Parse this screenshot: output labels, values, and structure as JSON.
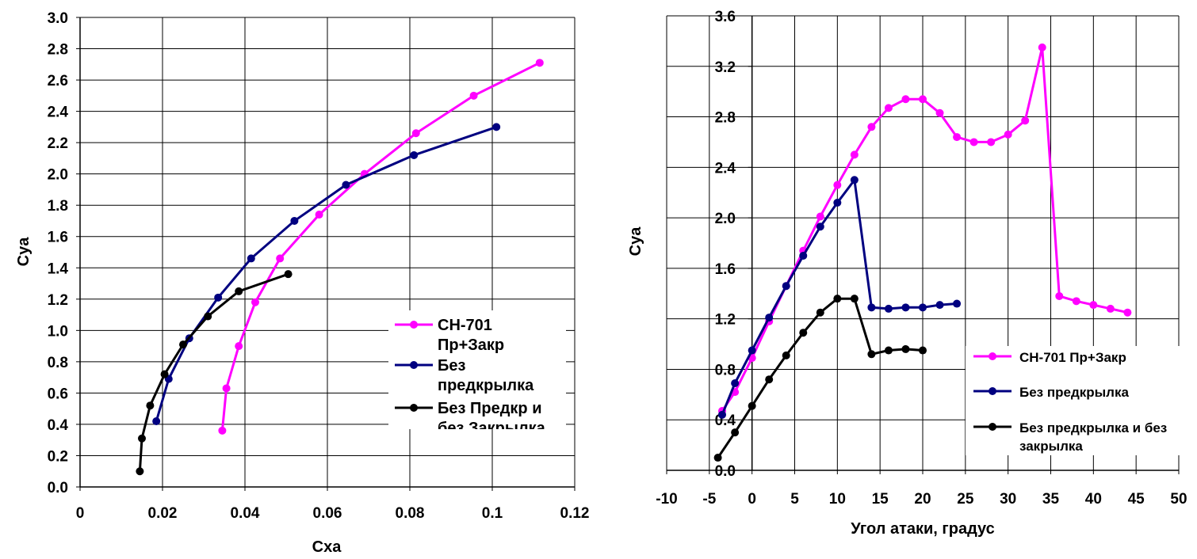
{
  "chart_data": [
    {
      "type": "line",
      "xlabel": "Cxa",
      "ylabel": "Cya",
      "xlim": [
        0,
        0.12
      ],
      "ylim": [
        0,
        3.0
      ],
      "xticks": [
        "0",
        "0.02",
        "0.04",
        "0.06",
        "0.08",
        "0.1",
        "0.12"
      ],
      "yticks": [
        "0.0",
        "0.2",
        "0.4",
        "0.6",
        "0.8",
        "1.0",
        "1.2",
        "1.4",
        "1.6",
        "1.8",
        "2.0",
        "2.2",
        "2.4",
        "2.6",
        "2.8",
        "3.0"
      ],
      "grid": true,
      "legend": "lower-right",
      "legend_labels": [
        [
          "CH-701",
          "Пр+Закр"
        ],
        [
          "Без",
          "предкрылка"
        ],
        [
          "Без Предкр и",
          "без Закрылка"
        ]
      ],
      "series": [
        {
          "name": "CH-701 Пр+Закр",
          "color": "#ff00ff",
          "x": [
            0.0345,
            0.0355,
            0.0385,
            0.0425,
            0.0485,
            0.058,
            0.069,
            0.0815,
            0.0955,
            0.1115
          ],
          "y": [
            0.36,
            0.63,
            0.9,
            1.18,
            1.46,
            1.74,
            2.0,
            2.26,
            2.5,
            2.71
          ]
        },
        {
          "name": "Без предкрылка",
          "color": "#000080",
          "x": [
            0.0185,
            0.0215,
            0.0265,
            0.0335,
            0.0415,
            0.052,
            0.0645,
            0.081,
            0.101
          ],
          "y": [
            0.42,
            0.69,
            0.95,
            1.21,
            1.46,
            1.7,
            1.93,
            2.12,
            2.3
          ]
        },
        {
          "name": "Без Предкр и без Закрылка",
          "color": "#000000",
          "x": [
            0.0145,
            0.015,
            0.017,
            0.0205,
            0.025,
            0.031,
            0.0385,
            0.0505
          ],
          "y": [
            0.1,
            0.31,
            0.52,
            0.72,
            0.91,
            1.09,
            1.25,
            1.36
          ]
        }
      ]
    },
    {
      "type": "line",
      "xlabel": "Угол атаки, градус",
      "ylabel": "Cya",
      "xlim": [
        -10,
        50
      ],
      "ylim": [
        0,
        3.6
      ],
      "xticks": [
        "-10",
        "-5",
        "0",
        "5",
        "10",
        "15",
        "20",
        "25",
        "30",
        "35",
        "40",
        "45",
        "50"
      ],
      "yticks": [
        "0.0",
        "0.4",
        "0.8",
        "1.2",
        "1.6",
        "2.0",
        "2.4",
        "2.8",
        "3.2",
        "3.6"
      ],
      "grid": true,
      "legend": "lower-right",
      "legend_labels": [
        [
          "CH-701 Пр+Закр"
        ],
        [
          "Без предкрылка"
        ],
        [
          "Без предкрылка и без",
          "закрылка"
        ]
      ],
      "series": [
        {
          "name": "CH-701 Пр+Закр",
          "color": "#ff00ff",
          "x": [
            -3.5,
            -2,
            0,
            2,
            4,
            6,
            8,
            10,
            12,
            14,
            16,
            18,
            20,
            22,
            24,
            26,
            28,
            30,
            32,
            34,
            36,
            38,
            40,
            42,
            44
          ],
          "y": [
            0.47,
            0.62,
            0.89,
            1.18,
            1.46,
            1.74,
            2.01,
            2.26,
            2.5,
            2.72,
            2.87,
            2.94,
            2.94,
            2.83,
            2.64,
            2.6,
            2.6,
            2.66,
            2.77,
            3.35,
            1.38,
            1.34,
            1.31,
            1.28,
            1.25
          ]
        },
        {
          "name": "Без предкрылка",
          "color": "#000080",
          "x": [
            -3.5,
            -2,
            0,
            2,
            4,
            6,
            8,
            10,
            12,
            14,
            16,
            18,
            20,
            22,
            24
          ],
          "y": [
            0.44,
            0.69,
            0.95,
            1.21,
            1.46,
            1.7,
            1.93,
            2.12,
            2.3,
            1.29,
            1.28,
            1.29,
            1.29,
            1.31,
            1.32
          ]
        },
        {
          "name": "Без предкрылка и без закрылка",
          "color": "#000000",
          "x": [
            -4,
            -2,
            0,
            2,
            4,
            6,
            8,
            10,
            12,
            14,
            16,
            18,
            20
          ],
          "y": [
            0.1,
            0.3,
            0.51,
            0.72,
            0.91,
            1.09,
            1.25,
            1.36,
            1.36,
            0.92,
            0.95,
            0.96,
            0.95
          ]
        }
      ]
    }
  ]
}
